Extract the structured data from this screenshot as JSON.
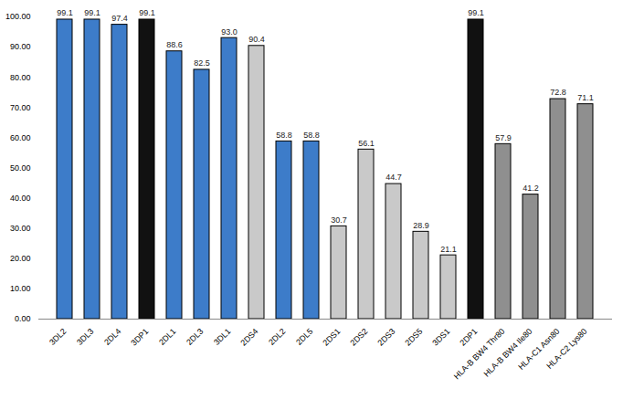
{
  "chart_data": {
    "type": "bar",
    "categories": [
      "3DL2",
      "3DL3",
      "2DL4",
      "3DP1",
      "2DL1",
      "2DL3",
      "3DL1",
      "2DS4",
      "2DL2",
      "2DL5",
      "2DS1",
      "2DS2",
      "2DS3",
      "2DS5",
      "3DS1",
      "2DP1",
      "HLA-B BW4 Thr80",
      "HLA-B BW4 Ile80",
      "HLA-C1 Asn80",
      "HLA-C2 Lys80"
    ],
    "values": [
      99.1,
      99.1,
      97.4,
      99.1,
      88.6,
      82.5,
      93.0,
      90.4,
      58.8,
      58.8,
      30.7,
      56.1,
      44.7,
      28.9,
      21.1,
      99.1,
      57.9,
      41.2,
      72.8,
      71.1
    ],
    "value_labels": [
      "99.1",
      "99.1",
      "97.4",
      "99.1",
      "88.6",
      "82.5",
      "93.0",
      "90.4",
      "58.8",
      "58.8",
      "30.7",
      "56.1",
      "44.7",
      "28.9",
      "21.1",
      "99.1",
      "57.9",
      "41.2",
      "72.8",
      "71.1"
    ],
    "colors": [
      "#3d7cc9",
      "#3d7cc9",
      "#3d7cc9",
      "#111111",
      "#3d7cc9",
      "#3d7cc9",
      "#3d7cc9",
      "#c9c9c9",
      "#3d7cc9",
      "#3d7cc9",
      "#c9c9c9",
      "#c9c9c9",
      "#c9c9c9",
      "#c9c9c9",
      "#c9c9c9",
      "#111111",
      "#8f8f8f",
      "#8f8f8f",
      "#8f8f8f",
      "#8f8f8f"
    ],
    "ylim": [
      0,
      100
    ],
    "yticks": [
      {
        "value": 0,
        "label": "0.00"
      },
      {
        "value": 10,
        "label": "10.00"
      },
      {
        "value": 20,
        "label": "20.00"
      },
      {
        "value": 30,
        "label": "30.00"
      },
      {
        "value": 40,
        "label": "40.00"
      },
      {
        "value": 50,
        "label": "50.00"
      },
      {
        "value": 60,
        "label": "60.00"
      },
      {
        "value": 70,
        "label": "70.00"
      },
      {
        "value": 80,
        "label": "80.00"
      },
      {
        "value": 90,
        "label": "90.00"
      },
      {
        "value": 100,
        "label": "100.00"
      }
    ],
    "grid": false,
    "data_labels": true
  }
}
